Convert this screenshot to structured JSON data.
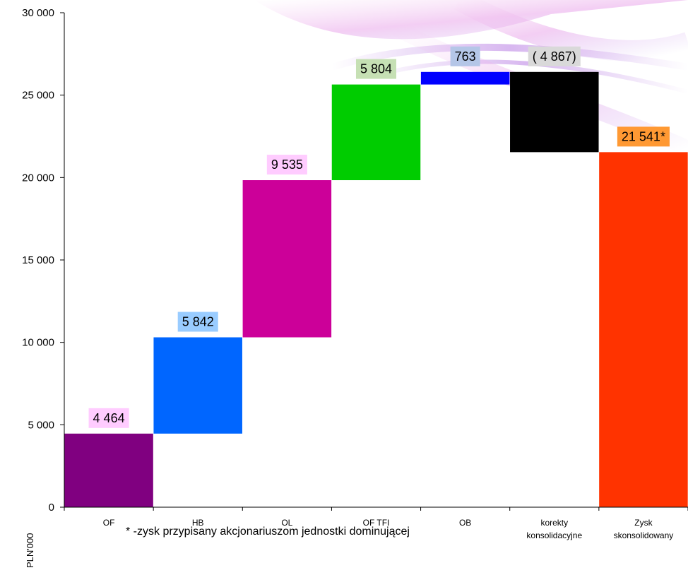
{
  "chart_data": {
    "type": "waterfall",
    "ylabel": "PLN'000",
    "ylim": [
      0,
      30000
    ],
    "yticks": [
      0,
      5000,
      10000,
      15000,
      20000,
      25000,
      30000
    ],
    "ytick_labels": [
      "0",
      "5 000",
      "10 000",
      "15 000",
      "20 000",
      "25 000",
      "30 000"
    ],
    "footnote": "* -zysk przypisany akcjonariuszom jednostki dominującej",
    "bars": [
      {
        "category": "OF",
        "category_lines": [
          "OF"
        ],
        "value": 4464,
        "start": 0,
        "end": 4464,
        "label": "4 464",
        "color": "#800080",
        "label_bg": "#ffccff"
      },
      {
        "category": "HB",
        "category_lines": [
          "HB"
        ],
        "value": 5842,
        "start": 4464,
        "end": 10306,
        "label": "5 842",
        "color": "#0066ff",
        "label_bg": "#99ccff"
      },
      {
        "category": "OL",
        "category_lines": [
          "OL"
        ],
        "value": 9535,
        "start": 10306,
        "end": 19841,
        "label": "9 535",
        "color": "#cc0099",
        "label_bg": "#ffccff"
      },
      {
        "category": "OF TFI",
        "category_lines": [
          "OF TFI"
        ],
        "value": 5804,
        "start": 19841,
        "end": 25645,
        "label": "5 804",
        "color": "#00cc00",
        "label_bg": "#c6e0b4"
      },
      {
        "category": "OB",
        "category_lines": [
          "OB"
        ],
        "value": 763,
        "start": 25645,
        "end": 26408,
        "label": "763",
        "color": "#0000ff",
        "label_bg": "#b4c6e7"
      },
      {
        "category": "korekty konsolidacyjne",
        "category_lines": [
          "korekty",
          "konsolidacyjne"
        ],
        "value": -4867,
        "start": 26408,
        "end": 21541,
        "label": "( 4 867)",
        "color": "#000000",
        "label_bg": "#d9d9d9"
      },
      {
        "category": "Zysk skonsolidowany",
        "category_lines": [
          "Zysk",
          "skonsolidowany"
        ],
        "value": 21541,
        "start": 0,
        "end": 21541,
        "label": "21 541*",
        "color": "#ff3300",
        "label_bg": "#ff9933"
      }
    ]
  }
}
